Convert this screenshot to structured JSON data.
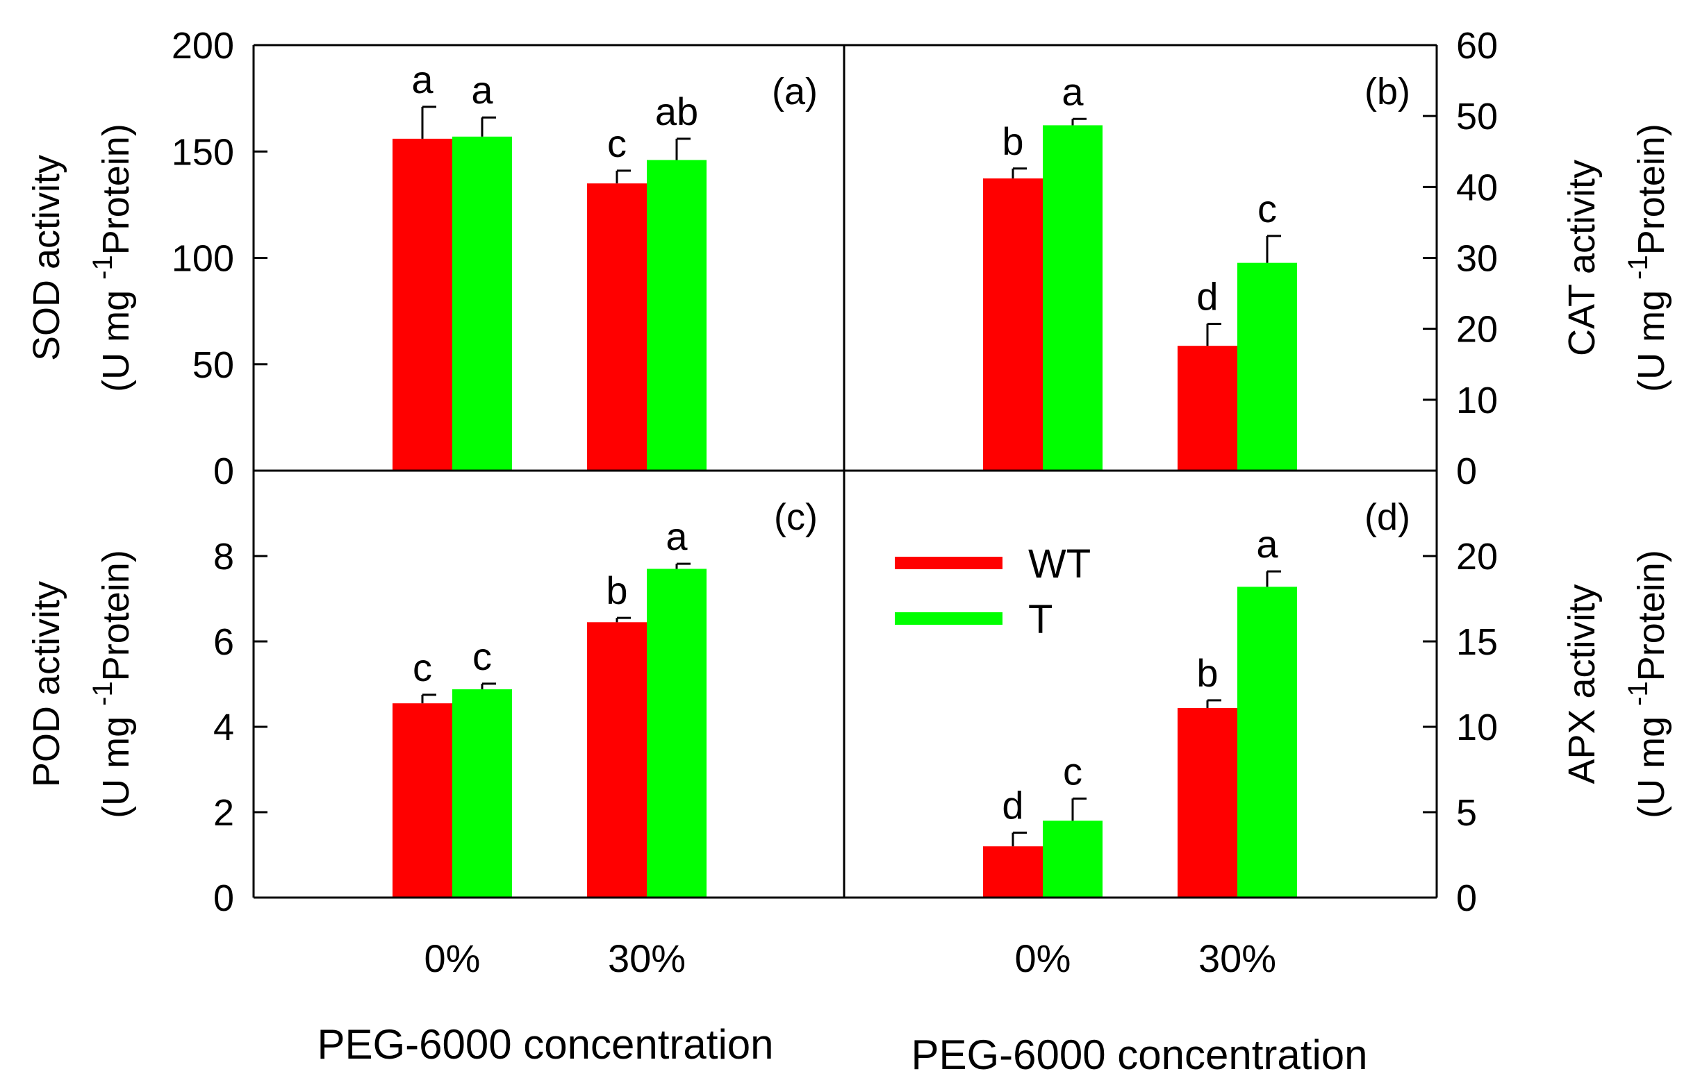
{
  "colors": {
    "WT": "#ff0000",
    "T": "#00ff00",
    "axis": "#000000"
  },
  "legend": [
    {
      "key": "WT",
      "label": "WT"
    },
    {
      "key": "T",
      "label": "T"
    }
  ],
  "x_axis": {
    "categories": [
      "0%",
      "30%"
    ],
    "title_left": "PEG-6000 concentration",
    "title_right": "PEG-6000 concentration"
  },
  "chart_data": [
    {
      "type": "bar",
      "panel": "(a)",
      "axis_side": "left",
      "ylabel_line1": "SOD activity",
      "ylabel_line2_pre": "(U mg",
      "ylabel_sup": "-1",
      "ylabel_line2_post": "Protein)",
      "ylim": [
        0,
        200
      ],
      "ticks": [
        0,
        50,
        100,
        150,
        200
      ],
      "categories": [
        "0%",
        "30%"
      ],
      "series": [
        {
          "name": "WT",
          "values": [
            156,
            135
          ],
          "errors": [
            15,
            6
          ],
          "labels": [
            "a",
            "c"
          ]
        },
        {
          "name": "T",
          "values": [
            157,
            146
          ],
          "errors": [
            9,
            10
          ],
          "labels": [
            "a",
            "ab"
          ]
        }
      ]
    },
    {
      "type": "bar",
      "panel": "(b)",
      "axis_side": "right",
      "ylabel_line1": "CAT activity",
      "ylabel_line2_pre": "(U mg",
      "ylabel_sup": "-1",
      "ylabel_line2_post": "Protein)",
      "ylim": [
        0,
        60
      ],
      "ticks": [
        0,
        10,
        20,
        30,
        40,
        50,
        60
      ],
      "categories": [
        "0%",
        "30%"
      ],
      "series": [
        {
          "name": "WT",
          "values": [
            41.2,
            17.6
          ],
          "errors": [
            1.4,
            3.1
          ],
          "labels": [
            "b",
            "d"
          ]
        },
        {
          "name": "T",
          "values": [
            48.7,
            29.3
          ],
          "errors": [
            0.9,
            3.8
          ],
          "labels": [
            "a",
            "c"
          ]
        }
      ]
    },
    {
      "type": "bar",
      "panel": "(c)",
      "axis_side": "left",
      "ylabel_line1": "POD activity",
      "ylabel_line2_pre": "(U mg",
      "ylabel_sup": "-1",
      "ylabel_line2_post": "Protein)",
      "ylim": [
        0,
        10
      ],
      "ticks": [
        0,
        2,
        4,
        6,
        8
      ],
      "categories": [
        "0%",
        "30%"
      ],
      "series": [
        {
          "name": "WT",
          "values": [
            4.55,
            6.45
          ],
          "errors": [
            0.2,
            0.1
          ],
          "labels": [
            "c",
            "b"
          ]
        },
        {
          "name": "T",
          "values": [
            4.88,
            7.7
          ],
          "errors": [
            0.13,
            0.12
          ],
          "labels": [
            "c",
            "a"
          ]
        }
      ]
    },
    {
      "type": "bar",
      "panel": "(d)",
      "axis_side": "right",
      "ylabel_line1": "APX activity",
      "ylabel_line2_pre": "(U mg",
      "ylabel_sup": "-1",
      "ylabel_line2_post": "Protein)",
      "ylim": [
        0,
        25
      ],
      "ticks": [
        0,
        5,
        10,
        15,
        20
      ],
      "categories": [
        "0%",
        "30%"
      ],
      "series": [
        {
          "name": "WT",
          "values": [
            3.0,
            11.1
          ],
          "errors": [
            0.8,
            0.45
          ],
          "labels": [
            "d",
            "b"
          ]
        },
        {
          "name": "T",
          "values": [
            4.5,
            18.2
          ],
          "errors": [
            1.3,
            0.9
          ],
          "labels": [
            "c",
            "a"
          ]
        }
      ]
    }
  ]
}
